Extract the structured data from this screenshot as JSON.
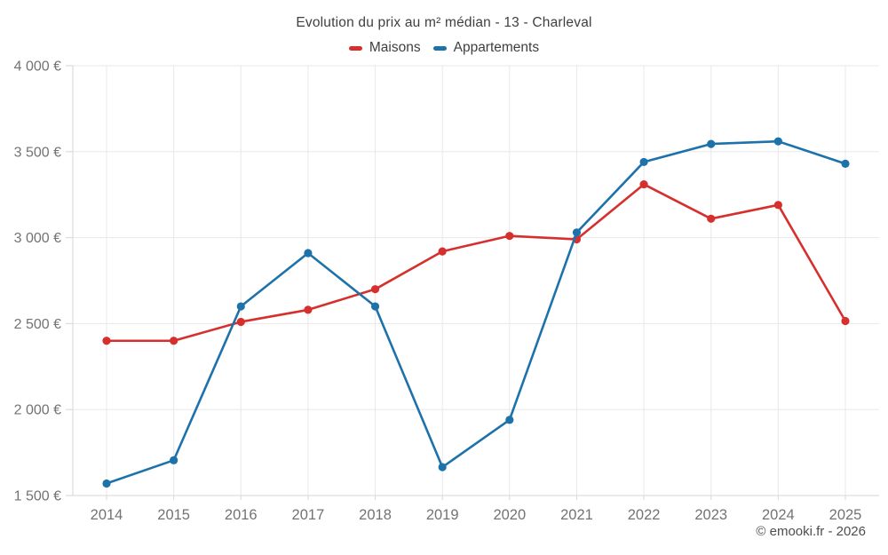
{
  "header": {
    "title": "Evolution du prix au m² médian - 13 - Charleval"
  },
  "legend": {
    "items": [
      {
        "label": "Maisons",
        "color": "#d6302e"
      },
      {
        "label": "Appartements",
        "color": "#1d72aa"
      }
    ]
  },
  "footer": {
    "copyright": "© emooki.fr - 2026"
  },
  "colors": {
    "background": "#ffffff",
    "gridline": "#e8e8e8",
    "axis_line": "#d6d6d6",
    "tick_label": "#737373",
    "title_text": "#3f3f3f",
    "maisons": "#d6302e",
    "appartements": "#1d72aa"
  },
  "chart_data": {
    "type": "line",
    "title": "Evolution du prix au m² médian - 13 - Charleval",
    "xlabel": "",
    "ylabel": "",
    "categories": [
      "2014",
      "2015",
      "2016",
      "2017",
      "2018",
      "2019",
      "2020",
      "2021",
      "2022",
      "2023",
      "2024",
      "2025"
    ],
    "series": [
      {
        "name": "Maisons",
        "color": "#d6302e",
        "values": [
          2400,
          2400,
          2510,
          2580,
          2700,
          2920,
          3010,
          2990,
          3310,
          3110,
          3190,
          2515
        ]
      },
      {
        "name": "Appartements",
        "color": "#1d72aa",
        "values": [
          1570,
          1705,
          2600,
          2910,
          2600,
          1665,
          1940,
          3030,
          3440,
          3545,
          3560,
          3430
        ]
      }
    ],
    "ylim": [
      1500,
      4000
    ],
    "y_ticks": [
      1500,
      2000,
      2500,
      3000,
      3500,
      4000
    ],
    "y_tick_labels": [
      "1 500 €",
      "2 000 €",
      "2 500 €",
      "3 000 €",
      "3 500 €",
      "4 000 €"
    ],
    "grid": true,
    "legend_position": "top"
  }
}
